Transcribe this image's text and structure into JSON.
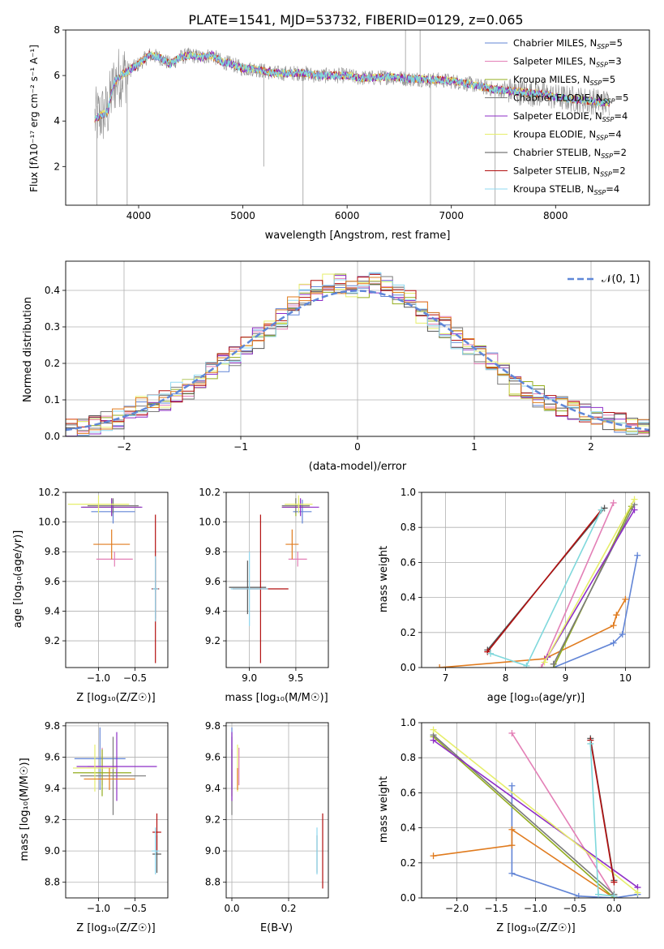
{
  "title": "PLATE=1541, MJD=53732, FIBERID=0129, z=0.065",
  "colors": {
    "chabrier_miles": "#6285d6",
    "salpeter_miles": "#e37fb6",
    "kroupa_miles": "#93ad1e",
    "chabrier_elodie": "#7a7a7a",
    "salpeter_elodie": "#8e2ec7",
    "kroupa_elodie": "#e6ee6a",
    "chabrier_stelib": "#555555",
    "salpeter_stelib": "#b20f0f",
    "kroupa_stelib": "#8fd9f0",
    "orange": "#e07b1e",
    "cyan": "#7fd8dc",
    "gauss": "#5f87d8"
  },
  "spectrum_panel": {
    "xlabel": "wavelength [Angstrom, rest frame]",
    "ylabel": "Flux [fλ10⁻¹⁷ erg cm⁻² s⁻¹ A⁻¹]",
    "xticks": [
      "4000",
      "5000",
      "6000",
      "7000",
      "8000"
    ],
    "yticks": [
      "2",
      "4",
      "6",
      "8"
    ],
    "legend": [
      {
        "label": "Chabrier MILES, N",
        "sub": "SSP",
        "suffix": "=5",
        "color": "#6285d6"
      },
      {
        "label": "Salpeter MILES, N",
        "sub": "SSP",
        "suffix": "=3",
        "color": "#e37fb6"
      },
      {
        "label": "Kroupa MILES, N",
        "sub": "SSP",
        "suffix": "=5",
        "color": "#93ad1e"
      },
      {
        "label": "Chabrier ELODIE, N",
        "sub": "SSP",
        "suffix": "=5",
        "color": "#7a7a7a"
      },
      {
        "label": "Salpeter ELODIE, N",
        "sub": "SSP",
        "suffix": "=4",
        "color": "#8e2ec7"
      },
      {
        "label": "Kroupa ELODIE, N",
        "sub": "SSP",
        "suffix": "=4",
        "color": "#e6ee6a"
      },
      {
        "label": "Chabrier STELIB, N",
        "sub": "SSP",
        "suffix": "=2",
        "color": "#555555"
      },
      {
        "label": "Salpeter STELIB, N",
        "sub": "SSP",
        "suffix": "=2",
        "color": "#b20f0f"
      },
      {
        "label": "Kroupa STELIB, N",
        "sub": "SSP",
        "suffix": "=4",
        "color": "#8fd9f0"
      }
    ]
  },
  "residual_panel": {
    "xlabel": "(data-model)/error",
    "ylabel": "Normed distribution",
    "xticks": [
      "−2",
      "−1",
      "0",
      "1",
      "2"
    ],
    "yticks": [
      "0.0",
      "0.1",
      "0.2",
      "0.3",
      "0.4"
    ],
    "legend_label": "𝒩(0, 1)"
  },
  "small_panels": {
    "age_vs_z": {
      "xlabel": "Z [log₁₀(Z/Z☉)]",
      "ylabel": "age  [log₁₀(age/yr)]",
      "xticks": [
        "−1.0",
        "−0.5"
      ],
      "yticks": [
        "9.2",
        "9.4",
        "9.6",
        "9.8",
        "10.0",
        "10.2"
      ]
    },
    "age_vs_mass": {
      "xlabel": "mass [log₁₀(M/M☉)]",
      "xticks": [
        "9.0",
        "9.5"
      ],
      "yticks": [
        "9.2",
        "9.4",
        "9.6",
        "9.8",
        "10.0",
        "10.2"
      ]
    },
    "mass_vs_z": {
      "xlabel": "Z [log₁₀(Z/Z☉)]",
      "ylabel": "mass [log₁₀(M/M☉)]",
      "xticks": [
        "−1.0",
        "−0.5"
      ],
      "yticks": [
        "8.8",
        "9.0",
        "9.2",
        "9.4",
        "9.6",
        "9.8"
      ]
    },
    "mass_vs_ebv": {
      "xlabel": "E(B-V)",
      "xticks": [
        "0.0",
        "0.2"
      ],
      "yticks": [
        "8.8",
        "9.0",
        "9.2",
        "9.4",
        "9.6",
        "9.8"
      ]
    },
    "weight_vs_age": {
      "xlabel": "age  [log₁₀(age/yr)]",
      "ylabel": "mass weight",
      "xticks": [
        "7",
        "8",
        "9",
        "10"
      ],
      "yticks": [
        "0.0",
        "0.2",
        "0.4",
        "0.6",
        "0.8",
        "1.0"
      ]
    },
    "weight_vs_z": {
      "xlabel": "Z [log₁₀(Z/Z☉)]",
      "ylabel": "mass weight",
      "xticks": [
        "−2.0",
        "−1.5",
        "−1.0",
        "−0.5",
        "0.0"
      ],
      "yticks": [
        "0.0",
        "0.2",
        "0.4",
        "0.6",
        "0.8",
        "1.0"
      ]
    }
  },
  "chart_data": [
    {
      "type": "line",
      "id": "spectrum",
      "title": "PLATE=1541, MJD=53732, FIBERID=0129, z=0.065",
      "xlabel": "wavelength [Angstrom, rest frame]",
      "ylabel": "Flux [fλ10⁻¹⁷ erg cm⁻² s⁻¹ A⁻¹]",
      "xlim": [
        3300,
        8900
      ],
      "ylim": [
        0.3,
        8
      ],
      "continuum": {
        "x": [
          3580,
          3700,
          3760,
          3800,
          3900,
          4000,
          4100,
          4200,
          4300,
          4400,
          4500,
          4600,
          4700,
          4800,
          4900,
          5000,
          5100,
          5200,
          5300,
          5400,
          5500,
          5600,
          5700,
          5800,
          5900,
          6000,
          6100,
          6200,
          6300,
          6400,
          6500,
          6600,
          6700,
          6800,
          6900,
          7000,
          7100,
          7200,
          7300,
          7400,
          7500,
          7600,
          7700,
          7800,
          7900,
          8000,
          8100,
          8200,
          8300,
          8400,
          8500
        ],
        "y": [
          4.1,
          4.4,
          5.6,
          5.9,
          6.2,
          6.5,
          6.9,
          6.8,
          6.5,
          6.8,
          6.9,
          6.8,
          6.9,
          6.6,
          6.5,
          6.3,
          6.3,
          6.2,
          6.1,
          6.1,
          6.1,
          6.1,
          6.0,
          6.0,
          6.0,
          6.0,
          5.9,
          5.9,
          5.9,
          5.95,
          5.9,
          5.85,
          5.85,
          5.8,
          5.8,
          5.75,
          5.7,
          5.6,
          5.5,
          5.4,
          5.35,
          5.3,
          5.25,
          5.2,
          5.15,
          5.05,
          5.0,
          4.95,
          4.9,
          4.85,
          4.8
        ]
      }
    },
    {
      "type": "line",
      "id": "residual_hist",
      "xlabel": "(data-model)/error",
      "ylabel": "Normed distribution",
      "xlim": [
        -2.5,
        2.5
      ],
      "ylim": [
        0,
        0.48
      ],
      "gaussian": {
        "name": "𝒩(0, 1)",
        "mu": 0,
        "sigma": 1
      },
      "bin_width": 0.1,
      "hist_envelope": {
        "x": [
          -2.45,
          -2.35,
          -2.25,
          -2.15,
          -2.05,
          -1.95,
          -1.85,
          -1.75,
          -1.65,
          -1.55,
          -1.45,
          -1.35,
          -1.25,
          -1.15,
          -1.05,
          -0.95,
          -0.85,
          -0.75,
          -0.65,
          -0.55,
          -0.45,
          -0.35,
          -0.25,
          -0.15,
          -0.05,
          0.05,
          0.15,
          0.25,
          0.35,
          0.45,
          0.55,
          0.65,
          0.75,
          0.85,
          0.95,
          1.05,
          1.15,
          1.25,
          1.35,
          1.45,
          1.55,
          1.65,
          1.75,
          1.85,
          1.95,
          2.05,
          2.15,
          2.25,
          2.35,
          2.45
        ],
        "y": [
          0.02,
          0.025,
          0.03,
          0.04,
          0.05,
          0.07,
          0.08,
          0.085,
          0.1,
          0.12,
          0.13,
          0.16,
          0.18,
          0.2,
          0.22,
          0.25,
          0.27,
          0.3,
          0.32,
          0.36,
          0.39,
          0.4,
          0.42,
          0.42,
          0.41,
          0.41,
          0.42,
          0.41,
          0.39,
          0.38,
          0.34,
          0.31,
          0.3,
          0.27,
          0.24,
          0.22,
          0.2,
          0.17,
          0.14,
          0.12,
          0.11,
          0.1,
          0.08,
          0.07,
          0.06,
          0.05,
          0.04,
          0.035,
          0.03,
          0.03
        ]
      }
    },
    {
      "type": "scatter",
      "id": "age_vs_z",
      "xlim": [
        -1.45,
        -0.05
      ],
      "ylim": [
        9.02,
        10.2
      ],
      "points": [
        {
          "x": -0.8,
          "xerr": 0.3,
          "y": 10.07,
          "yerr": 0.08,
          "color": "#6285d6"
        },
        {
          "x": -0.78,
          "xerr": 0.25,
          "y": 9.75,
          "yerr": 0.05,
          "color": "#e37fb6"
        },
        {
          "x": -0.82,
          "xerr": 0.4,
          "y": 10.1,
          "yerr": 0.06,
          "color": "#93ad1e"
        },
        {
          "x": -0.8,
          "xerr": 0.35,
          "y": 10.11,
          "yerr": 0.05,
          "color": "#7a7a7a"
        },
        {
          "x": -0.82,
          "xerr": 0.42,
          "y": 10.1,
          "yerr": 0.06,
          "color": "#8e2ec7"
        },
        {
          "x": -1.0,
          "xerr": 0.42,
          "y": 10.12,
          "yerr": 0.06,
          "color": "#e6ee6a"
        },
        {
          "x": -0.22,
          "xerr": 0.05,
          "y": 9.55,
          "yerr": 0.2,
          "color": "#555555"
        },
        {
          "x": -0.22,
          "xerr": 0.05,
          "y": 9.55,
          "yerr": 0.5,
          "color": "#b20f0f"
        },
        {
          "x": -0.22,
          "xerr": 0.04,
          "y": 9.55,
          "yerr": 0.22,
          "color": "#8fd9f0"
        },
        {
          "x": -0.82,
          "xerr": 0.25,
          "y": 9.85,
          "yerr": 0.1,
          "color": "#e07b1e"
        }
      ]
    },
    {
      "type": "scatter",
      "id": "age_vs_mass",
      "xlim": [
        8.75,
        9.85
      ],
      "ylim": [
        9.02,
        10.2
      ],
      "points": [
        {
          "x": 9.57,
          "xerr": 0.1,
          "y": 10.07,
          "yerr": 0.08,
          "color": "#6285d6"
        },
        {
          "x": 9.52,
          "xerr": 0.1,
          "y": 9.75,
          "yerr": 0.05,
          "color": "#e37fb6"
        },
        {
          "x": 9.5,
          "xerr": 0.15,
          "y": 10.1,
          "yerr": 0.06,
          "color": "#93ad1e"
        },
        {
          "x": 9.5,
          "xerr": 0.15,
          "y": 10.11,
          "yerr": 0.05,
          "color": "#7a7a7a"
        },
        {
          "x": 9.55,
          "xerr": 0.2,
          "y": 10.1,
          "yerr": 0.06,
          "color": "#8e2ec7"
        },
        {
          "x": 9.53,
          "xerr": 0.15,
          "y": 10.12,
          "yerr": 0.06,
          "color": "#e6ee6a"
        },
        {
          "x": 8.98,
          "xerr": 0.2,
          "y": 9.56,
          "yerr": 0.18,
          "color": "#555555"
        },
        {
          "x": 9.12,
          "xerr": 0.3,
          "y": 9.55,
          "yerr": 0.5,
          "color": "#b20f0f"
        },
        {
          "x": 9.0,
          "xerr": 0.2,
          "y": 9.55,
          "yerr": 0.25,
          "color": "#8fd9f0"
        },
        {
          "x": 9.46,
          "xerr": 0.07,
          "y": 9.85,
          "yerr": 0.1,
          "color": "#e07b1e"
        }
      ]
    },
    {
      "type": "line",
      "id": "weight_vs_age",
      "xlim": [
        6.6,
        10.4
      ],
      "ylim": [
        0,
        1
      ],
      "series": [
        {
          "color": "#6285d6",
          "points": [
            [
              8.8,
              0.0
            ],
            [
              9.8,
              0.14
            ],
            [
              9.95,
              0.19
            ],
            [
              10.2,
              0.64
            ]
          ]
        },
        {
          "color": "#e07b1e",
          "points": [
            [
              6.9,
              0.0
            ],
            [
              8.65,
              0.05
            ],
            [
              9.8,
              0.24
            ],
            [
              9.85,
              0.3
            ],
            [
              10.0,
              0.39
            ]
          ]
        },
        {
          "color": "#e37fb6",
          "points": [
            [
              8.6,
              0.0
            ],
            [
              9.8,
              0.94
            ]
          ]
        },
        {
          "color": "#93ad1e",
          "points": [
            [
              8.8,
              0.0
            ],
            [
              10.1,
              0.92
            ]
          ]
        },
        {
          "color": "#7a7a7a",
          "points": [
            [
              8.8,
              0.02
            ],
            [
              10.15,
              0.93
            ]
          ]
        },
        {
          "color": "#8e2ec7",
          "points": [
            [
              8.7,
              0.06
            ],
            [
              10.15,
              0.9
            ]
          ]
        },
        {
          "color": "#e6ee6a",
          "points": [
            [
              8.65,
              0.03
            ],
            [
              10.15,
              0.96
            ]
          ]
        },
        {
          "color": "#555555",
          "points": [
            [
              7.7,
              0.1
            ],
            [
              9.65,
              0.91
            ]
          ]
        },
        {
          "color": "#b20f0f",
          "points": [
            [
              7.7,
              0.09
            ],
            [
              9.6,
              0.9
            ]
          ]
        },
        {
          "color": "#7fd8dc",
          "points": [
            [
              7.75,
              0.08
            ],
            [
              8.35,
              0.01
            ],
            [
              9.6,
              0.9
            ]
          ]
        }
      ]
    },
    {
      "type": "scatter",
      "id": "mass_vs_z",
      "xlim": [
        -1.45,
        -0.05
      ],
      "ylim": [
        8.7,
        9.82
      ],
      "points": [
        {
          "x": -0.98,
          "xerr": 0.35,
          "y": 9.59,
          "yerr": 0.2,
          "color": "#6285d6"
        },
        {
          "x": -0.95,
          "xerr": 0.2,
          "y": 9.54,
          "yerr": 0.12,
          "color": "#e37fb6"
        },
        {
          "x": -0.95,
          "xerr": 0.4,
          "y": 9.5,
          "yerr": 0.15,
          "color": "#93ad1e"
        },
        {
          "x": -0.8,
          "xerr": 0.45,
          "y": 9.48,
          "yerr": 0.25,
          "color": "#7a7a7a"
        },
        {
          "x": -0.75,
          "xerr": 0.55,
          "y": 9.54,
          "yerr": 0.22,
          "color": "#8e2ec7"
        },
        {
          "x": -1.05,
          "xerr": 0.3,
          "y": 9.53,
          "yerr": 0.15,
          "color": "#e6ee6a"
        },
        {
          "x": -0.2,
          "xerr": 0.06,
          "y": 8.98,
          "yerr": 0.12,
          "color": "#555555"
        },
        {
          "x": -0.2,
          "xerr": 0.06,
          "y": 9.12,
          "yerr": 0.12,
          "color": "#b20f0f"
        },
        {
          "x": -0.22,
          "xerr": 0.05,
          "y": 9.0,
          "yerr": 0.15,
          "color": "#8fd9f0"
        },
        {
          "x": -0.85,
          "xerr": 0.35,
          "y": 9.46,
          "yerr": 0.07,
          "color": "#e07b1e"
        }
      ]
    },
    {
      "type": "scatter",
      "id": "mass_vs_ebv",
      "xlim": [
        -0.02,
        0.34
      ],
      "ylim": [
        8.7,
        9.82
      ],
      "points": [
        {
          "x": 0.0,
          "y": 9.59,
          "yerr": 0.2,
          "color": "#6285d6"
        },
        {
          "x": 0.025,
          "y": 9.54,
          "yerr": 0.12,
          "color": "#e37fb6"
        },
        {
          "x": 0.0,
          "y": 9.5,
          "yerr": 0.15,
          "color": "#93ad1e"
        },
        {
          "x": 0.0,
          "y": 9.48,
          "yerr": 0.25,
          "color": "#7a7a7a"
        },
        {
          "x": 0.0,
          "y": 9.54,
          "yerr": 0.22,
          "color": "#8e2ec7"
        },
        {
          "x": 0.02,
          "y": 9.53,
          "yerr": 0.15,
          "color": "#e6ee6a"
        },
        {
          "x": 0.3,
          "y": 8.98,
          "yerr": 0.12,
          "color": "#555555"
        },
        {
          "x": 0.32,
          "y": 9.0,
          "yerr": 0.24,
          "color": "#b20f0f"
        },
        {
          "x": 0.3,
          "y": 9.0,
          "yerr": 0.15,
          "color": "#8fd9f0"
        },
        {
          "x": 0.02,
          "y": 9.46,
          "yerr": 0.07,
          "color": "#e07b1e"
        }
      ]
    },
    {
      "type": "line",
      "id": "weight_vs_z",
      "xlim": [
        -2.45,
        0.45
      ],
      "ylim": [
        0,
        1
      ],
      "series": [
        {
          "color": "#6285d6",
          "points": [
            [
              -1.3,
              0.64
            ],
            [
              -1.3,
              0.14
            ],
            [
              -0.45,
              0.01
            ],
            [
              0.0,
              0.0
            ],
            [
              0.3,
              0.02
            ]
          ]
        },
        {
          "color": "#e07b1e",
          "points": [
            [
              -2.3,
              0.24
            ],
            [
              -1.3,
              0.3
            ],
            [
              -1.3,
              0.39
            ],
            [
              0.0,
              0.0
            ]
          ]
        },
        {
          "color": "#e37fb6",
          "points": [
            [
              -1.3,
              0.94
            ],
            [
              0.0,
              0.01
            ]
          ]
        },
        {
          "color": "#93ad1e",
          "points": [
            [
              -2.3,
              0.92
            ],
            [
              0.0,
              0.0
            ]
          ]
        },
        {
          "color": "#7a7a7a",
          "points": [
            [
              -2.3,
              0.93
            ],
            [
              0.0,
              0.02
            ]
          ]
        },
        {
          "color": "#8e2ec7",
          "points": [
            [
              -2.3,
              0.9
            ],
            [
              0.3,
              0.06
            ]
          ]
        },
        {
          "color": "#e6ee6a",
          "points": [
            [
              -2.3,
              0.96
            ],
            [
              0.3,
              0.03
            ]
          ]
        },
        {
          "color": "#555555",
          "points": [
            [
              -0.3,
              0.91
            ],
            [
              0.0,
              0.1
            ]
          ]
        },
        {
          "color": "#b20f0f",
          "points": [
            [
              -0.3,
              0.9
            ],
            [
              0.0,
              0.09
            ]
          ]
        },
        {
          "color": "#7fd8dc",
          "points": [
            [
              -0.3,
              0.88
            ],
            [
              -0.2,
              0.02
            ],
            [
              0.0,
              0.01
            ]
          ]
        }
      ]
    }
  ]
}
